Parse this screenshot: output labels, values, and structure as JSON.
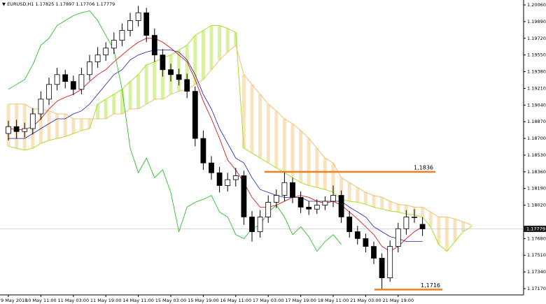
{
  "chart_data": {
    "type": "candlestick",
    "symbol": "EURUSD,H1",
    "categories": [
      "9 May 2018",
      null,
      null,
      null,
      "10 May 11:00",
      null,
      null,
      null,
      "11 May 03:00",
      null,
      null,
      null,
      "11 May 19:00",
      null,
      null,
      null,
      "14 May 11:00",
      null,
      null,
      null,
      "15 May 03:00",
      null,
      null,
      null,
      "15 May 19:00",
      null,
      null,
      null,
      "16 May 11:00",
      null,
      null,
      null,
      "17 May 03:00",
      null,
      null,
      null,
      "17 May 19:00",
      null,
      null,
      null,
      "18 May 11:00",
      null,
      null,
      null,
      "21 May 03:00",
      null,
      null,
      null,
      "21 May 19:00",
      null,
      null,
      null,
      null,
      null,
      null,
      null,
      null,
      null
    ],
    "open": [
      1.1875,
      1.1882,
      1.1877,
      1.188,
      1.1895,
      1.191,
      1.1925,
      1.1935,
      1.1928,
      1.192,
      1.1935,
      1.1948,
      1.1955,
      1.1962,
      1.197,
      1.198,
      1.199,
      1.1998,
      1.1975,
      1.1955,
      1.194,
      1.1935,
      1.193,
      1.1918,
      1.187,
      1.1845,
      1.1835,
      1.1822,
      1.1828,
      1.1832,
      1.179,
      1.1775,
      1.179,
      1.1805,
      1.1812,
      1.1825,
      1.181,
      1.18,
      1.1798,
      1.1802,
      1.1806,
      1.1812,
      1.179,
      1.1775,
      1.1768,
      1.176,
      1.1748,
      1.1728,
      1.176,
      1.1778,
      1.179,
      1.17825,
      null,
      null,
      null,
      null,
      null,
      null
    ],
    "high": [
      1.1888,
      1.1889,
      1.1886,
      1.1901,
      1.1918,
      1.1932,
      1.1942,
      1.194,
      1.1934,
      1.1942,
      1.1955,
      1.1963,
      1.1968,
      1.1978,
      1.1987,
      1.1998,
      1.2005,
      1.2003,
      1.1982,
      1.1961,
      1.1946,
      1.1941,
      1.1936,
      1.1923,
      1.1878,
      1.1852,
      1.1841,
      1.1835,
      1.184,
      1.1837,
      1.1796,
      1.1797,
      1.1812,
      1.1818,
      1.1836,
      1.183,
      1.1816,
      1.1806,
      1.1808,
      1.1811,
      1.1822,
      1.1817,
      1.1796,
      1.1781,
      1.1773,
      1.1765,
      1.1753,
      1.1766,
      1.1784,
      1.1797,
      1.1798,
      1.17897,
      null,
      null,
      null,
      null,
      null,
      null
    ],
    "low": [
      1.1868,
      1.187,
      1.1871,
      1.1874,
      1.1889,
      1.1904,
      1.1919,
      1.1921,
      1.1914,
      1.1915,
      1.1929,
      1.1942,
      1.1949,
      1.1956,
      1.1964,
      1.1974,
      1.1984,
      1.1968,
      1.1948,
      1.1933,
      1.1928,
      1.1924,
      1.1911,
      1.1862,
      1.1838,
      1.1828,
      1.1815,
      1.1816,
      1.1821,
      1.1782,
      1.1765,
      1.1769,
      1.1784,
      1.1799,
      1.1806,
      1.1804,
      1.1794,
      1.1792,
      1.1793,
      1.1797,
      1.18,
      1.1784,
      1.1769,
      1.1762,
      1.1754,
      1.1742,
      1.1716,
      1.1724,
      1.1754,
      1.1772,
      1.1784,
      1.17706,
      null,
      null,
      null,
      null,
      null,
      null
    ],
    "close": [
      1.1882,
      1.1877,
      1.188,
      1.1895,
      1.191,
      1.1925,
      1.1935,
      1.1928,
      1.192,
      1.1935,
      1.1948,
      1.1955,
      1.1962,
      1.197,
      1.198,
      1.199,
      1.1998,
      1.1975,
      1.1955,
      1.194,
      1.1935,
      1.193,
      1.1918,
      1.187,
      1.1845,
      1.1835,
      1.1822,
      1.1828,
      1.1832,
      1.179,
      1.1775,
      1.179,
      1.1805,
      1.1812,
      1.1825,
      1.181,
      1.18,
      1.1798,
      1.1802,
      1.1806,
      1.1812,
      1.179,
      1.1775,
      1.1768,
      1.176,
      1.1748,
      1.1728,
      1.176,
      1.1778,
      1.179,
      1.179,
      1.17779,
      null,
      null,
      null,
      null,
      null,
      null
    ],
    "lines": [
      {
        "color": "#d40000",
        "values": [
          1.188,
          1.1879,
          1.1879,
          1.1882,
          1.189,
          1.19,
          1.1908,
          1.1912,
          1.1915,
          1.192,
          1.1928,
          1.1935,
          1.194,
          1.1948,
          1.1955,
          1.1962,
          1.1968,
          1.1972,
          1.1972,
          1.1968,
          1.1962,
          1.1955,
          1.1948,
          1.193,
          1.1908,
          1.189,
          1.187,
          1.1848,
          1.1838,
          1.1825,
          1.181,
          1.18,
          1.18,
          1.1802,
          1.1806,
          1.181,
          1.1812,
          1.181,
          1.1806,
          1.1804,
          1.1806,
          1.1802,
          1.1795,
          1.1788,
          1.178,
          1.1772,
          1.176,
          1.1755,
          1.176,
          1.1768,
          1.1775,
          1.178,
          null,
          null,
          null,
          null,
          null,
          null
        ]
      },
      {
        "color": "#1a1aa8",
        "values": [
          1.187,
          1.187,
          1.187,
          1.1875,
          1.188,
          1.1885,
          1.189,
          1.189,
          1.1895,
          1.1898,
          1.1905,
          1.1915,
          1.1925,
          1.1935,
          1.194,
          1.195,
          1.1955,
          1.1958,
          1.196,
          1.196,
          1.196,
          1.1958,
          1.195,
          1.1935,
          1.1915,
          1.19,
          1.188,
          1.1865,
          1.185,
          1.1845,
          1.183,
          1.1818,
          1.1815,
          1.1812,
          1.181,
          1.181,
          1.181,
          1.1806,
          1.1806,
          1.1806,
          1.1806,
          1.1806,
          1.18,
          1.1795,
          1.179,
          1.178,
          1.1775,
          1.177,
          1.1768,
          1.1765,
          1.1765,
          1.1765,
          null,
          null,
          null,
          null,
          null,
          null
        ]
      },
      {
        "color": "#16b816",
        "values": [
          1.192,
          1.1925,
          1.193,
          1.1945,
          1.1965,
          1.1972,
          1.1985,
          1.199,
          1.1995,
          1.1998,
          1.2,
          1.199,
          1.1975,
          1.196,
          1.192,
          1.186,
          1.1835,
          1.185,
          1.183,
          1.1838,
          1.1815,
          1.1775,
          1.18,
          1.1805,
          1.1808,
          1.1812,
          1.1795,
          1.179,
          1.1772,
          1.1768,
          1.1778,
          1.1782,
          1.1795,
          1.1802,
          1.179,
          1.1772,
          1.178,
          1.177,
          1.1755,
          1.1765,
          1.1772,
          1.1762,
          null,
          null,
          null,
          null,
          null,
          null,
          null,
          null,
          null,
          null,
          null,
          null,
          null,
          null,
          null,
          null
        ]
      }
    ],
    "cloud": {
      "up_color": "#a8e02a",
      "down_color": "#f0c070",
      "span_a": [
        1.1862,
        1.186,
        1.1858,
        1.186,
        1.1865,
        1.1868,
        1.187,
        1.1872,
        1.1875,
        1.1878,
        1.188,
        1.1905,
        1.191,
        1.1915,
        1.192,
        1.1928,
        1.1935,
        1.1945,
        1.1948,
        1.1952,
        1.1955,
        1.196,
        1.1965,
        1.1975,
        1.198,
        1.1985,
        1.1985,
        1.1982,
        1.1978,
        1.186,
        1.1855,
        1.185,
        1.1845,
        1.184,
        1.1835,
        1.183,
        1.1825,
        1.1822,
        1.182,
        1.1818,
        1.1815,
        1.1808,
        1.1806,
        1.1805,
        1.1803,
        1.18,
        1.1798,
        1.1796,
        1.1795,
        1.1793,
        1.1792,
        1.179,
        1.178,
        1.1762,
        1.1755,
        1.1765,
        1.1775,
        1.178
      ],
      "span_b": [
        1.1905,
        1.1905,
        1.1905,
        1.19,
        1.19,
        1.1898,
        1.1895,
        1.1895,
        1.189,
        1.189,
        1.189,
        1.189,
        1.189,
        1.1895,
        1.1895,
        1.19,
        1.19,
        1.1905,
        1.191,
        1.191,
        1.1915,
        1.1918,
        1.192,
        1.1925,
        1.193,
        1.194,
        1.195,
        1.1958,
        1.1965,
        1.1935,
        1.1925,
        1.1915,
        1.1905,
        1.1898,
        1.189,
        1.1885,
        1.1878,
        1.187,
        1.186,
        1.185,
        1.1845,
        1.183,
        1.1825,
        1.182,
        1.1815,
        1.1812,
        1.181,
        1.1806,
        1.1803,
        1.1802,
        1.18,
        1.18,
        1.1795,
        1.179,
        1.179,
        1.1788,
        1.1785,
        1.1782
      ]
    },
    "levels": [
      {
        "value": 1.1836,
        "label": "1,1836",
        "color": "#f08020"
      },
      {
        "value": 1.1716,
        "label": "1,1716",
        "color": "#f08020"
      }
    ],
    "ylim": [
      1.17106,
      1.2011
    ],
    "yticks": [
      {
        "value": 1.2006,
        "label": "1.20060"
      },
      {
        "value": 1.1989,
        "label": "1.19890"
      },
      {
        "value": 1.1972,
        "label": "1.19720"
      },
      {
        "value": 1.1955,
        "label": "1.19550"
      },
      {
        "value": 1.1938,
        "label": "1.19380"
      },
      {
        "value": 1.1921,
        "label": "1.19210"
      },
      {
        "value": 1.1904,
        "label": "1.19040"
      },
      {
        "value": 1.1887,
        "label": "1.18870"
      },
      {
        "value": 1.187,
        "label": "1.18700"
      },
      {
        "value": 1.1853,
        "label": "1.18530"
      },
      {
        "value": 1.1836,
        "label": "1.18360"
      },
      {
        "value": 1.1819,
        "label": "1.18190"
      },
      {
        "value": 1.1802,
        "label": "1.18020"
      },
      {
        "value": 1.1768,
        "label": "1.17680"
      },
      {
        "value": 1.1751,
        "label": "1.17510"
      },
      {
        "value": 1.1734,
        "label": "1.17340"
      },
      {
        "value": 1.1717,
        "label": "1.17170"
      }
    ]
  }
}
